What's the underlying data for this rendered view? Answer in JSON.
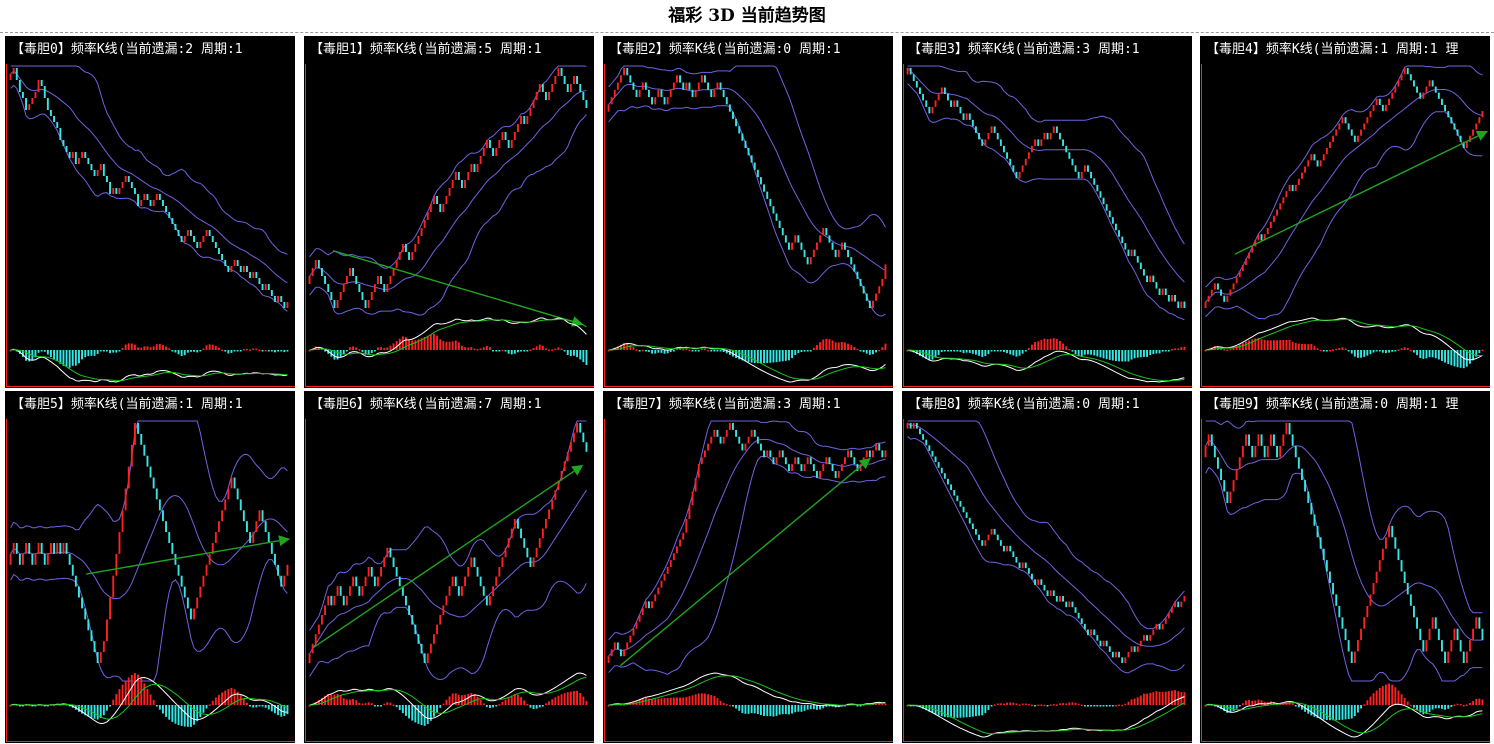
{
  "page": {
    "title": "福彩 3D 当前趋势图"
  },
  "panel_header_template": "【{name}】频率K线(当前遗漏:{miss} 周期:1",
  "colors": {
    "background": "#000000",
    "axis": "#ff2020",
    "up": "#ff2020",
    "down": "#35e6e6",
    "band": "#6f62e0",
    "trend_arrow": "#1fa51f",
    "osc_fast": "#ffffff",
    "osc_slow": "#19c419"
  },
  "chart_data": [
    {
      "type": "candlestick",
      "name": "毒胆0",
      "header": "【毒胆0】频率K线(当前遗漏:2 周期:1",
      "miss": 2,
      "trend": "down",
      "arrow": null,
      "closes": [
        16,
        17,
        15,
        13,
        12,
        10,
        11,
        12,
        13,
        15,
        14,
        12,
        10,
        9,
        8,
        7,
        5,
        4,
        3,
        2,
        3,
        1,
        2,
        3,
        2,
        1,
        0,
        -1,
        0,
        1,
        -1,
        -2,
        -4,
        -3,
        -4,
        -3,
        -2,
        -1,
        -2,
        -3,
        -4,
        -6,
        -5,
        -4,
        -5,
        -6,
        -5,
        -4,
        -5,
        -6,
        -7,
        -8,
        -9,
        -10,
        -11,
        -12,
        -11,
        -10,
        -11,
        -12,
        -13,
        -12,
        -11,
        -10,
        -11,
        -12,
        -13,
        -14,
        -15,
        -16,
        -17,
        -16,
        -15,
        -16,
        -17,
        -16,
        -17,
        -18,
        -17,
        -18,
        -19,
        -20,
        -19,
        -20,
        -21,
        -22,
        -21,
        -22,
        -23,
        -22
      ]
    },
    {
      "type": "candlestick",
      "name": "毒胆1",
      "header": "【毒胆1】频率K线(当前遗漏:5 周期:1",
      "miss": 5,
      "trend": "up",
      "arrow": [
        0.1,
        0.61,
        0.97,
        0.82
      ],
      "closes": [
        0,
        1,
        2,
        1,
        0,
        -1,
        -2,
        -3,
        -4,
        -3,
        -2,
        -1,
        0,
        1,
        0,
        -1,
        -2,
        -3,
        -4,
        -3,
        -2,
        -1,
        0,
        -1,
        -2,
        -1,
        0,
        1,
        2,
        3,
        4,
        3,
        2,
        3,
        4,
        5,
        6,
        7,
        8,
        9,
        10,
        9,
        8,
        9,
        10,
        11,
        12,
        13,
        12,
        11,
        12,
        13,
        14,
        13,
        14,
        15,
        16,
        17,
        16,
        15,
        16,
        17,
        18,
        17,
        16,
        17,
        18,
        19,
        20,
        19,
        20,
        21,
        22,
        23,
        24,
        23,
        22,
        23,
        24,
        25,
        26,
        25,
        24,
        23,
        24,
        25,
        24,
        23,
        22,
        21
      ]
    },
    {
      "type": "candlestick",
      "name": "毒胆2",
      "header": "【毒胆2】频率K线(当前遗漏:0 周期:1",
      "miss": 0,
      "trend": "down",
      "arrow": null,
      "closes": [
        8,
        9,
        10,
        11,
        12,
        13,
        12,
        11,
        10,
        9,
        10,
        11,
        10,
        9,
        8,
        9,
        10,
        9,
        8,
        9,
        10,
        11,
        12,
        11,
        10,
        11,
        10,
        9,
        10,
        11,
        12,
        11,
        10,
        9,
        10,
        11,
        10,
        9,
        8,
        7,
        6,
        5,
        4,
        3,
        2,
        1,
        0,
        -1,
        -2,
        -3,
        -4,
        -5,
        -6,
        -7,
        -8,
        -9,
        -10,
        -11,
        -12,
        -11,
        -10,
        -11,
        -12,
        -13,
        -14,
        -13,
        -12,
        -11,
        -10,
        -9,
        -10,
        -11,
        -12,
        -13,
        -12,
        -11,
        -12,
        -13,
        -14,
        -15,
        -16,
        -17,
        -18,
        -19,
        -20,
        -19,
        -18,
        -17,
        -16,
        -14
      ]
    },
    {
      "type": "candlestick",
      "name": "毒胆3",
      "header": "【毒胆3】频率K线(当前遗漏:3 周期:1",
      "miss": 3,
      "trend": "down",
      "arrow": null,
      "closes": [
        6,
        5,
        4,
        3,
        2,
        1,
        0,
        -1,
        0,
        1,
        2,
        3,
        2,
        1,
        0,
        1,
        0,
        -1,
        -2,
        -1,
        -2,
        -3,
        -4,
        -5,
        -6,
        -5,
        -4,
        -3,
        -4,
        -5,
        -6,
        -7,
        -8,
        -9,
        -10,
        -11,
        -10,
        -9,
        -8,
        -7,
        -6,
        -5,
        -6,
        -5,
        -4,
        -5,
        -4,
        -3,
        -4,
        -5,
        -6,
        -7,
        -8,
        -9,
        -10,
        -11,
        -10,
        -9,
        -10,
        -11,
        -12,
        -13,
        -14,
        -15,
        -16,
        -17,
        -18,
        -19,
        -20,
        -21,
        -22,
        -23,
        -22,
        -23,
        -24,
        -25,
        -26,
        -27,
        -26,
        -27,
        -28,
        -29,
        -28,
        -29,
        -30,
        -29,
        -30,
        -31,
        -30,
        -31
      ]
    },
    {
      "type": "candlestick",
      "name": "毒胆4",
      "header": "【毒胆4】频率K线(当前遗漏:1 周期:1 理",
      "miss": 1,
      "trend": "up",
      "arrow": [
        0.12,
        0.62,
        1.0,
        0.27
      ],
      "closes": [
        -6,
        -5,
        -4,
        -3,
        -4,
        -5,
        -6,
        -5,
        -4,
        -3,
        -2,
        -1,
        0,
        1,
        2,
        3,
        4,
        5,
        4,
        5,
        6,
        7,
        8,
        9,
        10,
        11,
        12,
        13,
        12,
        13,
        14,
        15,
        16,
        17,
        18,
        17,
        16,
        17,
        18,
        19,
        20,
        21,
        22,
        23,
        24,
        23,
        22,
        21,
        20,
        21,
        22,
        23,
        24,
        25,
        26,
        27,
        26,
        25,
        26,
        27,
        28,
        29,
        30,
        31,
        32,
        31,
        30,
        29,
        28,
        27,
        28,
        29,
        30,
        29,
        28,
        27,
        26,
        25,
        24,
        23,
        22,
        21,
        20,
        19,
        20,
        21,
        22,
        23,
        24,
        25
      ]
    },
    {
      "type": "candlestick",
      "name": "毒胆5",
      "header": "【毒胆5】频率K线(当前遗漏:1 周期:1",
      "miss": 1,
      "trend": "flat",
      "arrow": [
        0.28,
        0.52,
        0.99,
        0.42
      ],
      "closes": [
        0,
        1,
        0,
        -1,
        0,
        1,
        0,
        -1,
        0,
        1,
        0,
        -1,
        0,
        1,
        0,
        1,
        0,
        1,
        0,
        -1,
        -2,
        -3,
        -4,
        -5,
        -6,
        -7,
        -8,
        -9,
        -10,
        -9,
        -8,
        -6,
        -4,
        -2,
        0,
        2,
        4,
        6,
        8,
        10,
        12,
        11,
        10,
        9,
        8,
        7,
        6,
        5,
        4,
        3,
        2,
        1,
        0,
        -1,
        -2,
        -3,
        -4,
        -5,
        -6,
        -5,
        -4,
        -3,
        -2,
        -1,
        0,
        1,
        2,
        3,
        4,
        5,
        6,
        7,
        6,
        5,
        4,
        3,
        2,
        1,
        2,
        3,
        4,
        3,
        2,
        1,
        0,
        -1,
        -2,
        -3,
        -2,
        -1
      ]
    },
    {
      "type": "candlestick",
      "name": "毒胆6",
      "header": "【毒胆6】频率K线(当前遗漏:7 周期:1",
      "miss": 7,
      "trend": "up",
      "arrow": [
        0.03,
        0.73,
        0.97,
        0.21
      ],
      "closes": [
        -4,
        -3,
        -2,
        -1,
        0,
        1,
        2,
        1,
        2,
        3,
        2,
        1,
        2,
        3,
        4,
        3,
        2,
        3,
        4,
        5,
        4,
        3,
        4,
        5,
        6,
        7,
        6,
        5,
        4,
        3,
        2,
        1,
        0,
        -1,
        -2,
        -3,
        -4,
        -5,
        -4,
        -3,
        -2,
        -1,
        0,
        1,
        2,
        3,
        4,
        3,
        2,
        3,
        4,
        5,
        6,
        5,
        4,
        3,
        2,
        1,
        2,
        3,
        4,
        5,
        6,
        7,
        8,
        9,
        10,
        9,
        8,
        7,
        6,
        5,
        6,
        7,
        8,
        9,
        10,
        11,
        12,
        13,
        14,
        15,
        16,
        17,
        18,
        19,
        20,
        19,
        18,
        17
      ]
    },
    {
      "type": "candlestick",
      "name": "毒胆7",
      "header": "【毒胆7】频率K线(当前遗漏:3 周期:1",
      "miss": 3,
      "trend": "up",
      "arrow": [
        0.06,
        0.78,
        0.93,
        0.19
      ],
      "closes": [
        -18,
        -17,
        -16,
        -17,
        -18,
        -17,
        -16,
        -15,
        -14,
        -13,
        -12,
        -11,
        -10,
        -11,
        -10,
        -9,
        -8,
        -7,
        -6,
        -5,
        -4,
        -3,
        -2,
        -1,
        0,
        2,
        4,
        6,
        8,
        10,
        11,
        12,
        13,
        14,
        15,
        14,
        13,
        14,
        15,
        16,
        15,
        14,
        13,
        12,
        13,
        14,
        15,
        14,
        13,
        12,
        11,
        12,
        11,
        10,
        11,
        12,
        11,
        10,
        9,
        10,
        11,
        10,
        9,
        10,
        11,
        10,
        9,
        8,
        9,
        10,
        11,
        10,
        9,
        8,
        9,
        10,
        11,
        12,
        11,
        10,
        9,
        10,
        11,
        12,
        11,
        12,
        13,
        12,
        11,
        12
      ]
    },
    {
      "type": "candlestick",
      "name": "毒胆8",
      "header": "【毒胆8】频率K线(当前遗漏:0 周期:1",
      "miss": 0,
      "trend": "down",
      "arrow": null,
      "closes": [
        20,
        19,
        20,
        19,
        18,
        17,
        16,
        15,
        14,
        13,
        12,
        11,
        10,
        9,
        8,
        7,
        6,
        5,
        4,
        3,
        2,
        1,
        0,
        -1,
        -2,
        -1,
        0,
        1,
        0,
        -1,
        -2,
        -3,
        -2,
        -3,
        -4,
        -5,
        -6,
        -5,
        -6,
        -7,
        -8,
        -9,
        -8,
        -9,
        -10,
        -11,
        -10,
        -11,
        -12,
        -11,
        -12,
        -13,
        -12,
        -13,
        -14,
        -15,
        -16,
        -17,
        -18,
        -17,
        -18,
        -19,
        -20,
        -19,
        -20,
        -21,
        -22,
        -21,
        -22,
        -23,
        -22,
        -21,
        -20,
        -21,
        -20,
        -19,
        -18,
        -19,
        -18,
        -17,
        -16,
        -17,
        -16,
        -15,
        -14,
        -13,
        -12,
        -13,
        -12,
        -11
      ]
    },
    {
      "type": "candlestick",
      "name": "毒胆9",
      "header": "【毒胆9】频率K线(当前遗漏:0 周期:1 理",
      "miss": 0,
      "trend": "down",
      "arrow": null,
      "closes": [
        10,
        11,
        10,
        9,
        8,
        7,
        6,
        5,
        6,
        7,
        8,
        9,
        10,
        11,
        10,
        9,
        10,
        11,
        10,
        9,
        10,
        11,
        10,
        9,
        10,
        11,
        12,
        11,
        10,
        9,
        8,
        7,
        6,
        5,
        4,
        3,
        2,
        1,
        0,
        -1,
        -2,
        -3,
        -4,
        -5,
        -6,
        -7,
        -8,
        -9,
        -8,
        -7,
        -6,
        -5,
        -4,
        -3,
        -2,
        -1,
        0,
        1,
        2,
        3,
        2,
        1,
        0,
        -1,
        -2,
        -3,
        -4,
        -5,
        -6,
        -7,
        -8,
        -7,
        -6,
        -5,
        -6,
        -7,
        -8,
        -9,
        -8,
        -7,
        -6,
        -7,
        -8,
        -9,
        -8,
        -7,
        -6,
        -5,
        -6,
        -7
      ]
    }
  ]
}
